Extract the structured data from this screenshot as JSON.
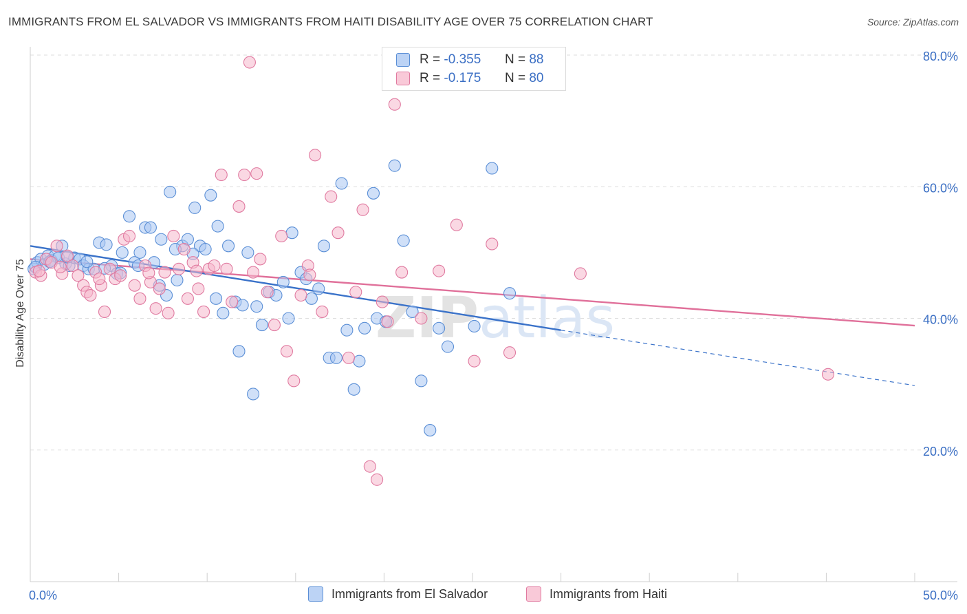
{
  "title": "IMMIGRANTS FROM EL SALVADOR VS IMMIGRANTS FROM HAITI DISABILITY AGE OVER 75 CORRELATION CHART",
  "source": "Source: ZipAtlas.com",
  "watermark": "ZIPatlas",
  "legend": {
    "r_label": "R =",
    "n_label": "N =",
    "series": [
      {
        "r": "-0.355",
        "n": "88"
      },
      {
        "r": "-0.175",
        "n": "80"
      }
    ]
  },
  "colors": {
    "blue_fill": "#a9c6f2",
    "blue_stroke": "#5b8fd6",
    "blue_line": "#3a72c9",
    "pink_fill": "#f6b8cc",
    "pink_stroke": "#e07aa0",
    "pink_line": "#e0709a",
    "grid": "#dedede",
    "tick_text": "#3b6fc4"
  },
  "chart_data": {
    "type": "scatter",
    "title": "IMMIGRANTS FROM EL SALVADOR VS IMMIGRANTS FROM HAITI DISABILITY AGE OVER 75 CORRELATION CHART",
    "xlabel": "",
    "ylabel": "Disability Age Over 75",
    "xlim": [
      0,
      50
    ],
    "ylim": [
      0,
      80
    ],
    "x_tick_labels": [
      "0.0%",
      "50.0%"
    ],
    "y_ticks": [
      20,
      40,
      60,
      80
    ],
    "y_tick_labels": [
      "20.0%",
      "40.0%",
      "60.0%",
      "80.0%"
    ],
    "legend_position": "top-center",
    "series": [
      {
        "name": "Immigrants from El Salvador",
        "r": -0.355,
        "n": 88,
        "trend": {
          "x0": 0,
          "y0": 51.0,
          "x1": 30,
          "y1": 38.2,
          "dash_to_x": 50,
          "dash_to_y": 29.8
        },
        "points": [
          [
            0.2,
            47.5
          ],
          [
            0.4,
            48.5
          ],
          [
            0.6,
            49.0
          ],
          [
            0.8,
            48.2
          ],
          [
            1.0,
            49.5
          ],
          [
            1.2,
            48.8
          ],
          [
            1.4,
            49.5
          ],
          [
            1.6,
            49.2
          ],
          [
            1.8,
            51.0
          ],
          [
            2.0,
            48.3
          ],
          [
            2.2,
            48.0
          ],
          [
            2.5,
            49.2
          ],
          [
            2.8,
            49.0
          ],
          [
            3.0,
            48.0
          ],
          [
            3.3,
            47.5
          ],
          [
            3.6,
            47.5
          ],
          [
            3.9,
            51.5
          ],
          [
            4.3,
            51.2
          ],
          [
            4.6,
            48.0
          ],
          [
            4.9,
            46.8
          ],
          [
            5.2,
            50.0
          ],
          [
            5.6,
            55.5
          ],
          [
            5.9,
            48.5
          ],
          [
            6.2,
            50.0
          ],
          [
            6.5,
            53.8
          ],
          [
            6.8,
            53.8
          ],
          [
            7.0,
            48.5
          ],
          [
            7.4,
            52.0
          ],
          [
            7.7,
            43.5
          ],
          [
            7.9,
            59.2
          ],
          [
            8.3,
            45.8
          ],
          [
            8.6,
            51.0
          ],
          [
            8.9,
            52.0
          ],
          [
            9.3,
            56.8
          ],
          [
            9.6,
            51.0
          ],
          [
            9.9,
            50.5
          ],
          [
            10.2,
            58.7
          ],
          [
            10.6,
            54.0
          ],
          [
            10.9,
            40.8
          ],
          [
            11.2,
            51.0
          ],
          [
            11.6,
            42.5
          ],
          [
            11.8,
            35.0
          ],
          [
            12.3,
            50.0
          ],
          [
            12.6,
            28.5
          ],
          [
            12.8,
            41.8
          ],
          [
            13.1,
            39.0
          ],
          [
            13.5,
            44.0
          ],
          [
            13.9,
            43.5
          ],
          [
            14.3,
            45.5
          ],
          [
            14.6,
            40.0
          ],
          [
            14.8,
            53.0
          ],
          [
            15.3,
            47.0
          ],
          [
            15.6,
            46.0
          ],
          [
            15.9,
            43.0
          ],
          [
            16.3,
            44.5
          ],
          [
            16.6,
            51.0
          ],
          [
            16.9,
            34.0
          ],
          [
            17.3,
            34.0
          ],
          [
            17.6,
            60.5
          ],
          [
            17.9,
            38.2
          ],
          [
            18.3,
            29.2
          ],
          [
            18.6,
            33.5
          ],
          [
            18.9,
            38.5
          ],
          [
            19.4,
            59.0
          ],
          [
            19.6,
            40.0
          ],
          [
            20.1,
            39.5
          ],
          [
            20.6,
            63.2
          ],
          [
            21.1,
            51.8
          ],
          [
            21.6,
            41.0
          ],
          [
            22.1,
            30.5
          ],
          [
            22.6,
            23.0
          ],
          [
            23.1,
            38.5
          ],
          [
            23.6,
            35.7
          ],
          [
            25.1,
            38.8
          ],
          [
            26.1,
            62.8
          ],
          [
            27.1,
            43.8
          ],
          [
            0.3,
            47.8
          ],
          [
            1.1,
            48.6
          ],
          [
            2.1,
            49.3
          ],
          [
            3.2,
            48.6
          ],
          [
            4.2,
            47.6
          ],
          [
            5.1,
            46.9
          ],
          [
            6.1,
            48.0
          ],
          [
            7.3,
            45.0
          ],
          [
            8.2,
            50.5
          ],
          [
            9.2,
            49.8
          ],
          [
            10.5,
            43.0
          ],
          [
            12.0,
            42.0
          ]
        ]
      },
      {
        "name": "Immigrants from Haiti",
        "r": -0.175,
        "n": 80,
        "trend": {
          "x0": 0,
          "y0": 49.0,
          "x1": 50,
          "y1": 38.9
        },
        "points": [
          [
            0.3,
            47.0
          ],
          [
            0.6,
            46.5
          ],
          [
            0.9,
            49.0
          ],
          [
            1.2,
            48.5
          ],
          [
            1.5,
            51.0
          ],
          [
            1.8,
            46.8
          ],
          [
            2.1,
            49.5
          ],
          [
            2.4,
            48.0
          ],
          [
            2.7,
            46.5
          ],
          [
            3.0,
            45.0
          ],
          [
            3.2,
            44.0
          ],
          [
            3.4,
            43.5
          ],
          [
            3.7,
            47.0
          ],
          [
            4.0,
            45.0
          ],
          [
            4.2,
            41.0
          ],
          [
            4.5,
            47.5
          ],
          [
            4.8,
            46.0
          ],
          [
            5.1,
            46.5
          ],
          [
            5.3,
            52.0
          ],
          [
            5.6,
            52.5
          ],
          [
            5.9,
            45.0
          ],
          [
            6.2,
            43.0
          ],
          [
            6.5,
            48.0
          ],
          [
            6.8,
            45.5
          ],
          [
            7.1,
            41.5
          ],
          [
            7.3,
            44.5
          ],
          [
            7.6,
            47.0
          ],
          [
            7.8,
            40.8
          ],
          [
            8.1,
            52.5
          ],
          [
            8.4,
            47.5
          ],
          [
            8.7,
            50.5
          ],
          [
            8.9,
            43.0
          ],
          [
            9.2,
            48.5
          ],
          [
            9.5,
            44.5
          ],
          [
            9.8,
            41.0
          ],
          [
            10.1,
            47.5
          ],
          [
            10.4,
            48.0
          ],
          [
            10.8,
            61.8
          ],
          [
            11.1,
            47.5
          ],
          [
            11.4,
            42.5
          ],
          [
            11.8,
            57.0
          ],
          [
            12.1,
            61.8
          ],
          [
            12.4,
            78.9
          ],
          [
            12.8,
            62.0
          ],
          [
            13.0,
            49.0
          ],
          [
            13.4,
            44.0
          ],
          [
            13.8,
            39.0
          ],
          [
            14.2,
            52.5
          ],
          [
            14.5,
            35.0
          ],
          [
            14.9,
            30.5
          ],
          [
            15.3,
            43.5
          ],
          [
            15.7,
            48.0
          ],
          [
            16.1,
            64.8
          ],
          [
            16.5,
            41.0
          ],
          [
            17.0,
            58.5
          ],
          [
            17.4,
            53.0
          ],
          [
            18.0,
            34.0
          ],
          [
            18.4,
            44.0
          ],
          [
            18.8,
            56.5
          ],
          [
            19.2,
            17.5
          ],
          [
            19.6,
            15.5
          ],
          [
            19.9,
            42.5
          ],
          [
            20.2,
            39.5
          ],
          [
            20.6,
            72.5
          ],
          [
            21.0,
            47.0
          ],
          [
            22.1,
            40.0
          ],
          [
            23.1,
            47.2
          ],
          [
            24.1,
            54.2
          ],
          [
            25.1,
            33.5
          ],
          [
            26.1,
            51.3
          ],
          [
            27.1,
            34.8
          ],
          [
            31.1,
            46.8
          ],
          [
            45.1,
            31.5
          ],
          [
            0.5,
            47.2
          ],
          [
            1.7,
            47.8
          ],
          [
            3.9,
            46.0
          ],
          [
            6.7,
            46.9
          ],
          [
            9.4,
            47.2
          ],
          [
            12.6,
            47.0
          ],
          [
            15.8,
            46.6
          ]
        ]
      }
    ]
  },
  "bottom_legend": {
    "items": [
      "Immigrants from El Salvador",
      "Immigrants from Haiti"
    ]
  }
}
